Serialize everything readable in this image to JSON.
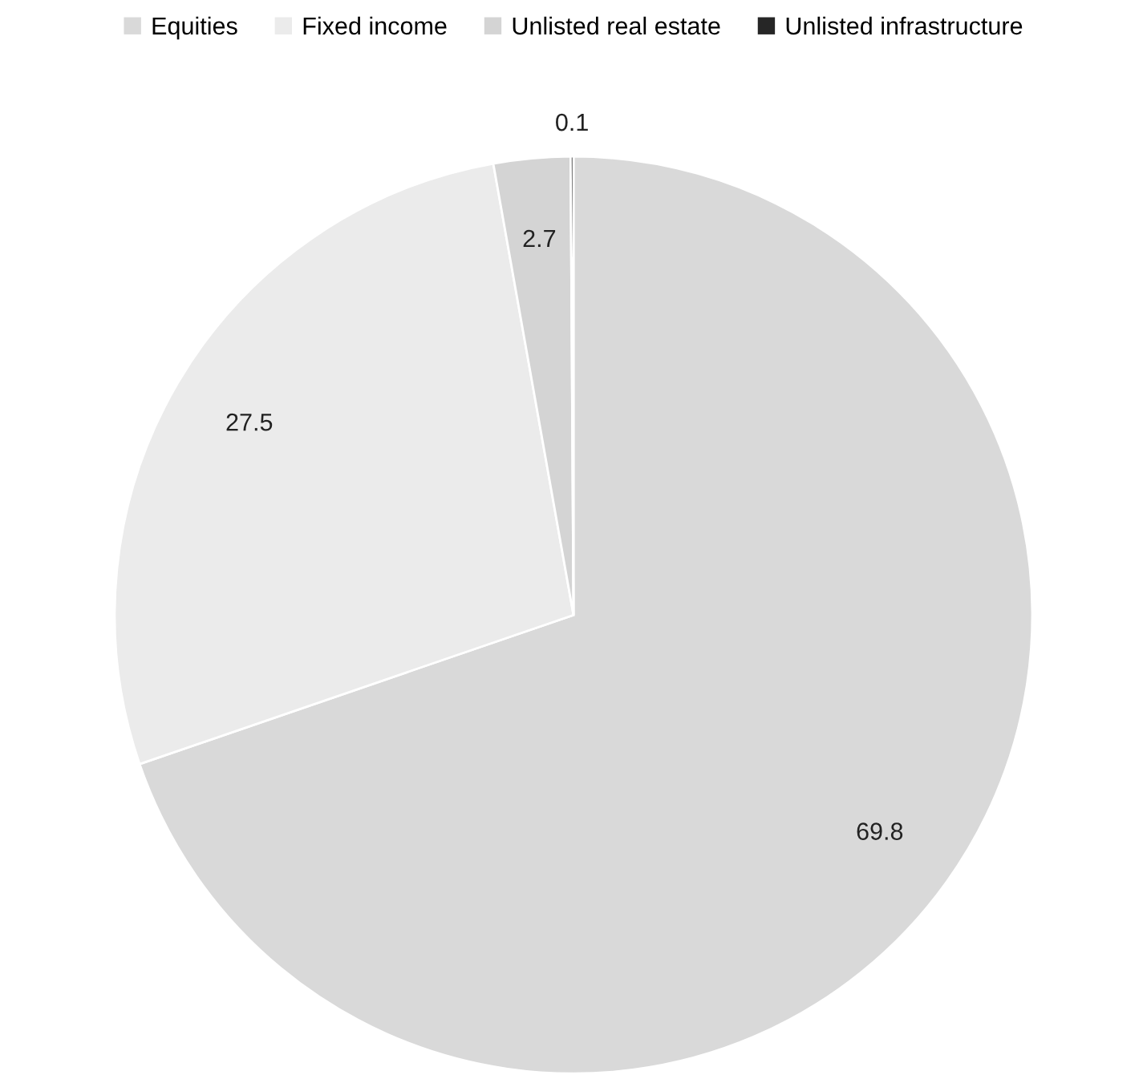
{
  "chart_data": {
    "type": "pie",
    "categories": [
      "Equities",
      "Fixed income",
      "Unlisted real estate",
      "Unlisted infrastructure"
    ],
    "values": [
      69.8,
      27.5,
      2.7,
      0.1
    ],
    "colors": [
      "#d9d9d9",
      "#ebebeb",
      "#d4d4d4",
      "#262626"
    ],
    "data_labels": true,
    "legend": "top"
  }
}
